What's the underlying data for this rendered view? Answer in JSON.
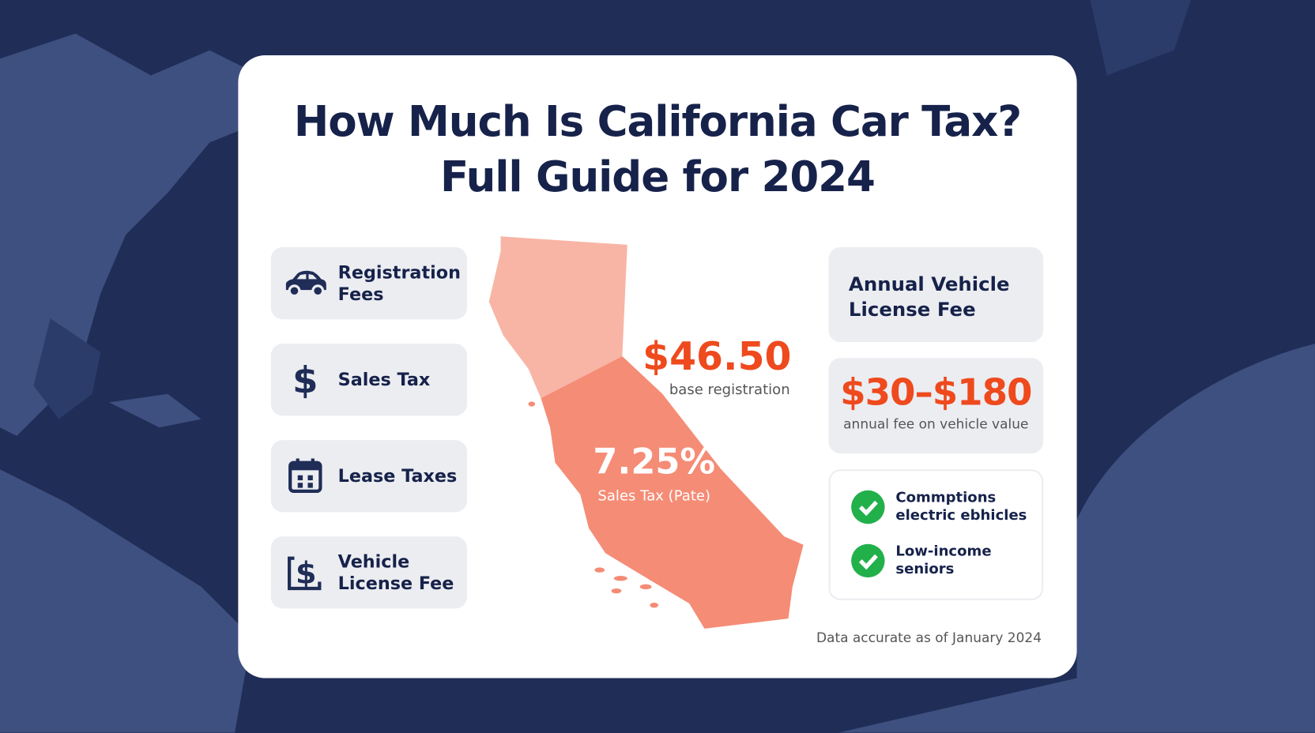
{
  "title": [
    "How Much Is California Car Tax?",
    "Full Guide for 2024"
  ],
  "left_items": [
    {
      "lines": [
        "Registration",
        "Fees"
      ]
    },
    {
      "lines": [
        "Sales Tax"
      ]
    },
    {
      "lines": [
        "Lease Taxes"
      ]
    },
    {
      "lines": [
        "Vehicle",
        "License Fee"
      ]
    }
  ],
  "map": {
    "registration_amount": "$46.50",
    "registration_caption": "base registration",
    "sales_rate": "7.25%",
    "sales_caption": "Sales Tax (Pate)"
  },
  "right": {
    "heading": [
      "Annual Vehicle",
      "License Fee"
    ],
    "fee_range": "$30–$180",
    "fee_caption": "annual fee on vehicle value",
    "exemptions": [
      [
        "Commptions",
        "electric ebhicles"
      ],
      [
        "Low-income",
        "seniors"
      ]
    ]
  },
  "footer": "Data accurate as of January 2024"
}
